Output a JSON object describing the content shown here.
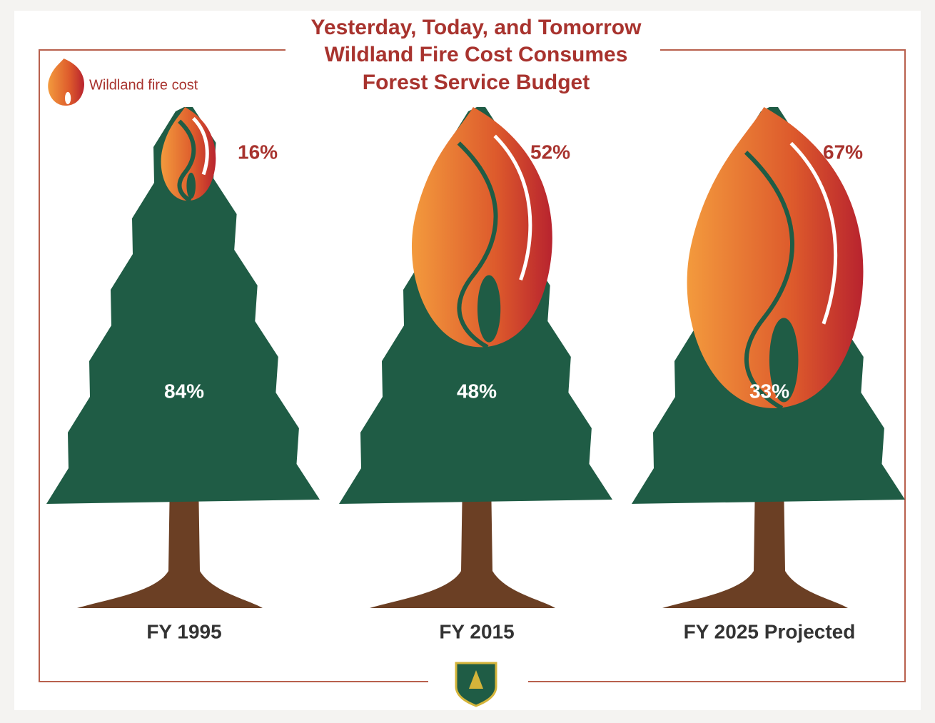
{
  "chart_data": {
    "type": "pictorial",
    "title": [
      "Yesterday, Today, and Tomorrow",
      "Wildland Fire Cost Consumes",
      "Forest Service Budget"
    ],
    "categories": [
      "FY 1995",
      "FY 2015",
      "FY 2025 Projected"
    ],
    "series": [
      {
        "name": "Wildland fire cost",
        "color": "#c0392b",
        "values": [
          16,
          52,
          67
        ],
        "value_labels": [
          "16%",
          "52%",
          "67%"
        ]
      },
      {
        "color": "#1f5c45",
        "values": [
          84,
          48,
          33
        ],
        "value_labels": [
          "84%",
          "48%",
          "33%"
        ]
      }
    ]
  }
}
